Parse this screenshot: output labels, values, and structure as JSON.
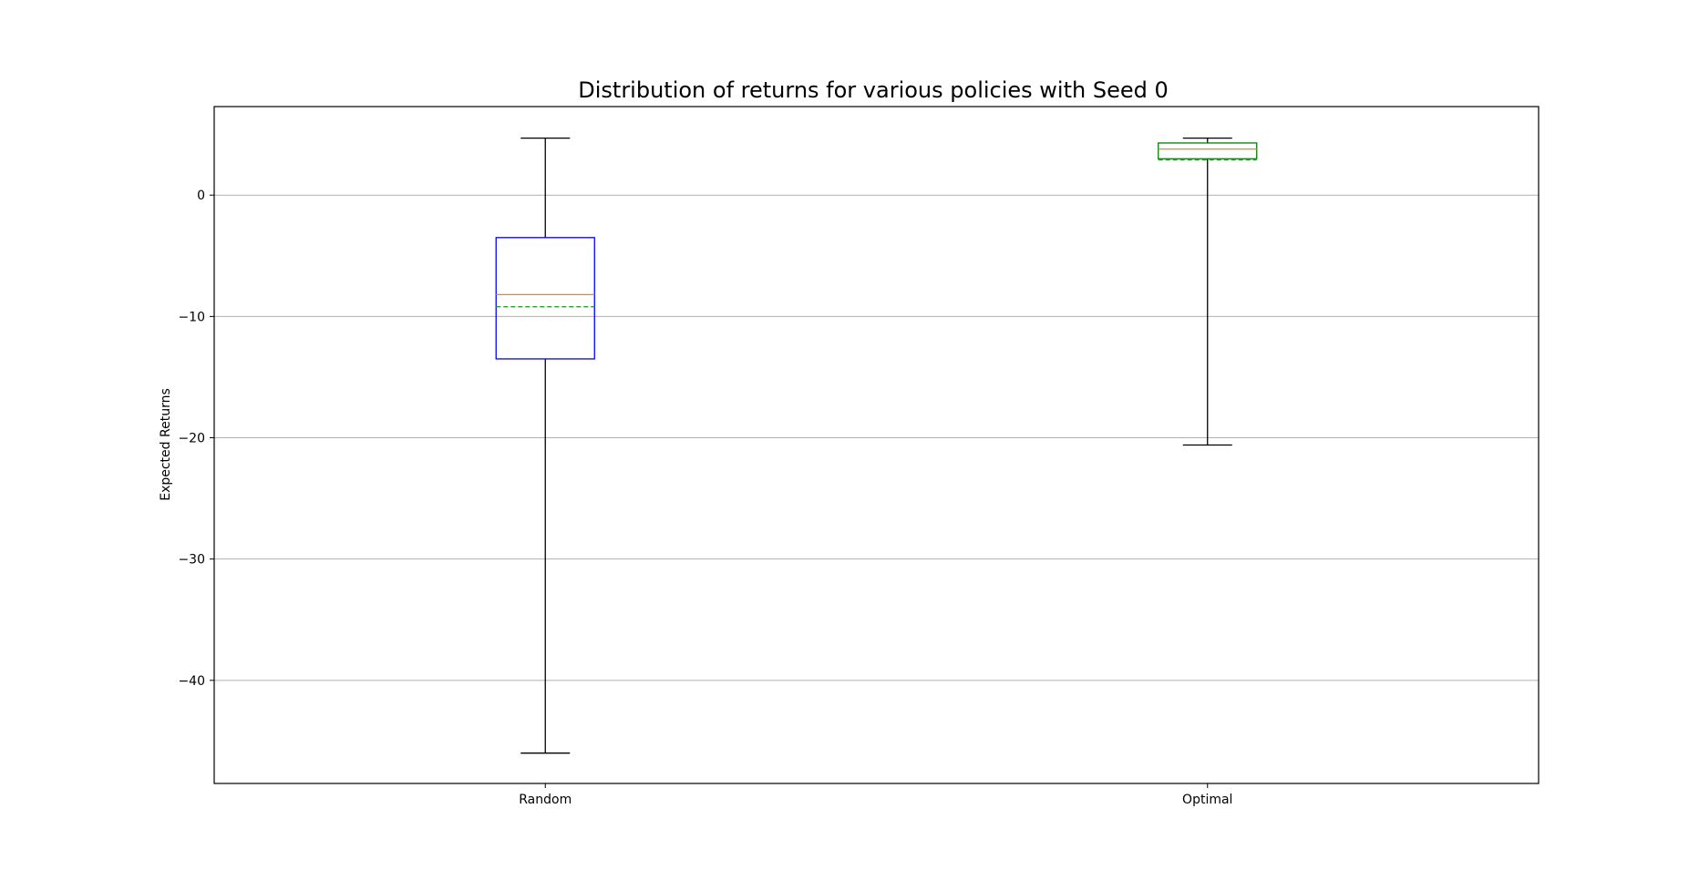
{
  "chart_data": {
    "type": "box",
    "title": "Distribution of returns for various policies with Seed 0",
    "xlabel": "",
    "ylabel": "Expected Returns",
    "ylim": [
      -48.5,
      7.3
    ],
    "yticks": [
      0,
      -10,
      -20,
      -30,
      -40
    ],
    "ytick_labels": [
      "0",
      "−10",
      "−20",
      "−30",
      "−40"
    ],
    "grid": "y",
    "categories": [
      "Random",
      "Optimal"
    ],
    "boxes": [
      {
        "label": "Random",
        "whisker_low": -46.0,
        "q1": -13.5,
        "median": -8.2,
        "mean": -9.2,
        "q3": -3.5,
        "whisker_high": 4.7,
        "box_color": "#0000ff"
      },
      {
        "label": "Optimal",
        "whisker_low": -20.6,
        "q1": 3.0,
        "median": 3.8,
        "mean": 2.9,
        "q3": 4.3,
        "whisker_high": 4.7,
        "box_color": "#008000"
      }
    ],
    "colors": {
      "median": "#ff7f0e",
      "mean": "#2ca02c",
      "whisker": "#000000",
      "grid": "#b0b0b0"
    }
  }
}
